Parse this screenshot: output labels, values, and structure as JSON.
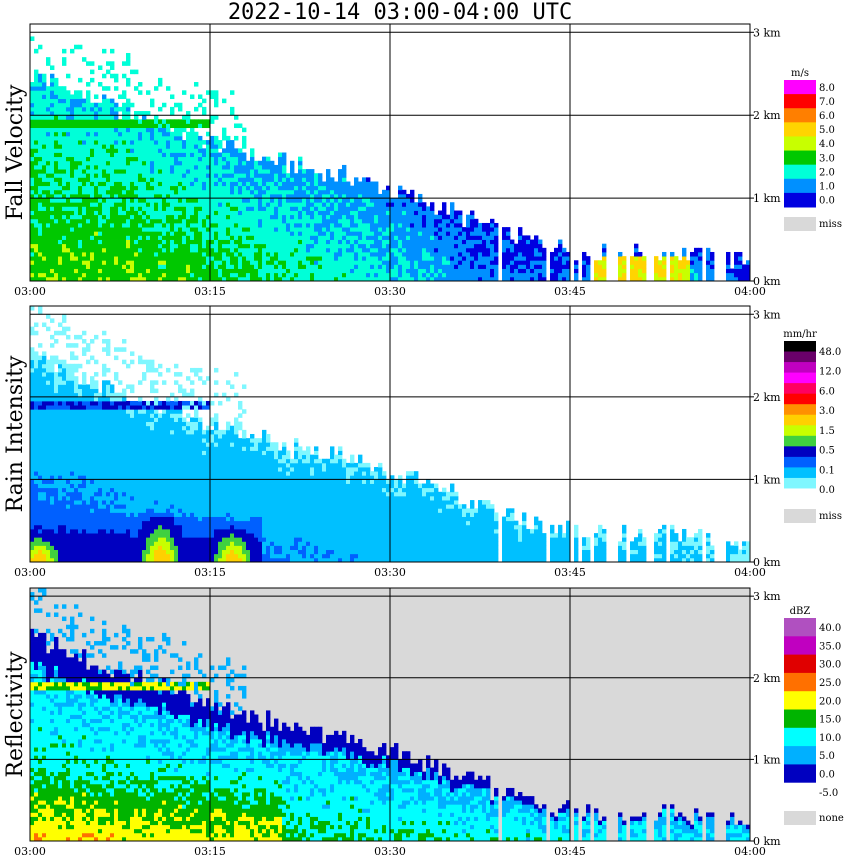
{
  "title": "2022-10-14   03:00-04:00 UTC",
  "chart_data": [
    {
      "type": "heatmap",
      "ylabel": "Fall Velocity",
      "x_ticks": [
        "03:00",
        "03:15",
        "03:30",
        "03:45",
        "04:00"
      ],
      "y_ticks": [
        "0 km",
        "1 km",
        "2 km",
        "3 km"
      ],
      "ylim_km": [
        0,
        3.1
      ],
      "grid": true,
      "colorbar": {
        "unit": "m/s",
        "labels": [
          "8.0",
          "7.0",
          "6.0",
          "5.0",
          "4.0",
          "3.0",
          "2.0",
          "1.0",
          "0.0"
        ],
        "colors": [
          "#ff00ff",
          "#ff0000",
          "#ff7f00",
          "#ffd400",
          "#c8ff00",
          "#00c800",
          "#00ffd8",
          "#0090ff",
          "#0000e0"
        ],
        "miss_label": "miss",
        "miss_color": "#d9d9d9"
      },
      "fields": {
        "top_km": [
          2.5,
          2.1,
          1.75,
          1.45,
          1.25,
          0.95,
          0.55,
          0.35,
          0.35,
          0.25
        ],
        "values": [
          3.8,
          3.9,
          3.6,
          3.0,
          2.6,
          2.0,
          1.1,
          1.2,
          2.5,
          0.8
        ],
        "band_value": 3.0
      }
    },
    {
      "type": "heatmap",
      "ylabel": "Rain Intensity",
      "x_ticks": [
        "03:00",
        "03:15",
        "03:30",
        "03:45",
        "04:00"
      ],
      "y_ticks": [
        "0 km",
        "1 km",
        "2 km",
        "3 km"
      ],
      "ylim_km": [
        0,
        3.1
      ],
      "grid": true,
      "colorbar": {
        "unit": "mm/hr",
        "labels": [
          "48.0",
          "12.0",
          "6.0",
          "3.0",
          "1.5",
          "0.5",
          "0.1",
          "0.0"
        ],
        "colors": [
          "#000000",
          "#6a006a",
          "#c000c0",
          "#ff00ff",
          "#ff0060",
          "#ff0000",
          "#ff9000",
          "#ffd000",
          "#c8ff00",
          "#40d040",
          "#0000c0",
          "#0060ff",
          "#00c0ff",
          "#7ff7ff",
          "#ffffff"
        ],
        "miss_label": "miss",
        "miss_color": "#d9d9d9"
      }
    },
    {
      "type": "heatmap",
      "ylabel": "Reflectivity",
      "x_ticks": [
        "03:00",
        "03:15",
        "03:30",
        "03:45",
        "04:00"
      ],
      "y_ticks": [
        "0 km",
        "1 km",
        "2 km",
        "3 km"
      ],
      "ylim_km": [
        0,
        3.1
      ],
      "grid": true,
      "colorbar": {
        "unit": "dBZ",
        "labels": [
          "40.0",
          "35.0",
          "30.0",
          "25.0",
          "20.0",
          "15.0",
          "10.0",
          "5.0",
          "0.0",
          "-5.0"
        ],
        "colors": [
          "#b050c0",
          "#c000c0",
          "#e00000",
          "#ff7000",
          "#ffff00",
          "#00b400",
          "#00ffff",
          "#00b0ff",
          "#0000c0",
          "#ffffff"
        ],
        "miss_label": "none",
        "miss_color": "#d9d9d9"
      }
    }
  ]
}
